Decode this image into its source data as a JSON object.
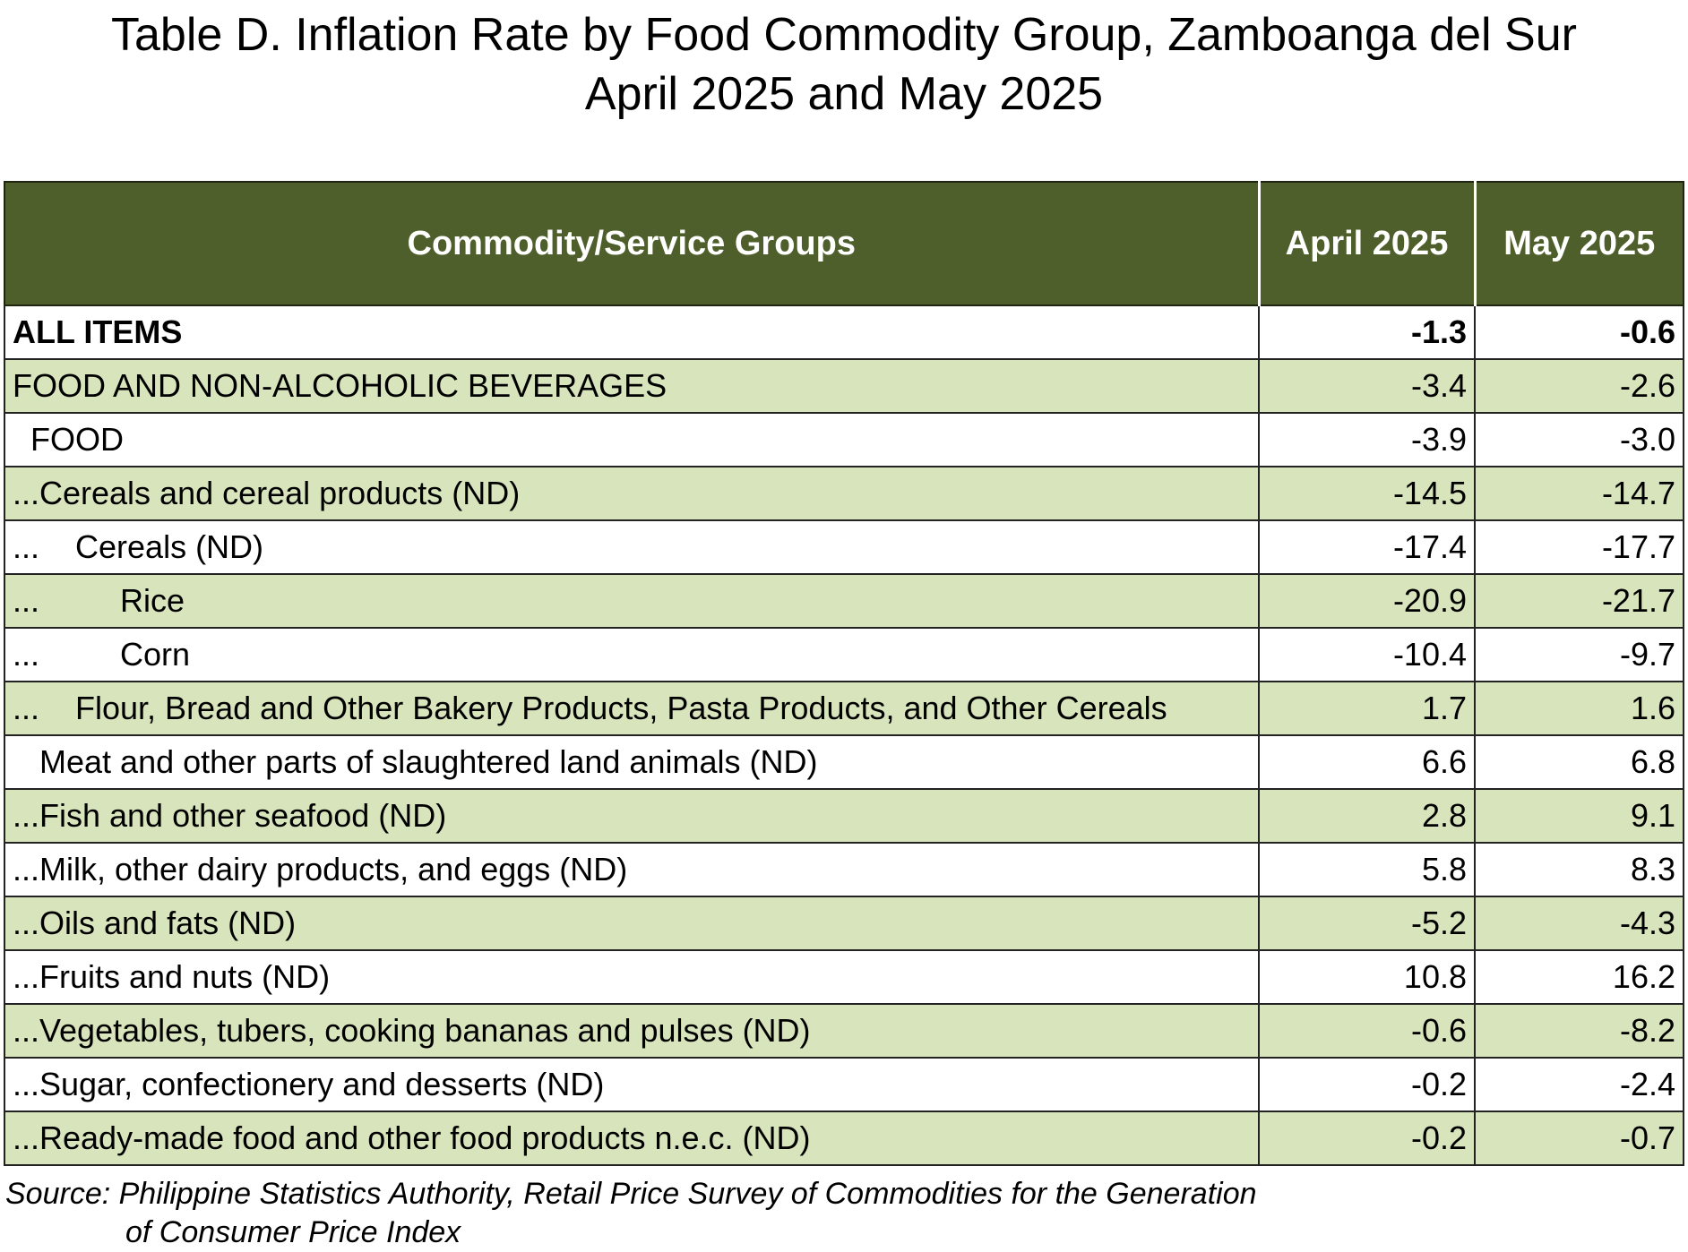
{
  "title": {
    "line1": "Table D. Inflation Rate by Food Commodity Group, Zamboanga del Sur",
    "line2": "April 2025 and May 2025"
  },
  "table": {
    "headers": [
      "Commodity/Service Groups",
      "April 2025",
      "May 2025"
    ],
    "rows": [
      {
        "label": "ALL ITEMS",
        "april": "-1.3",
        "may": "-0.6",
        "bold": true
      },
      {
        "label": "FOOD AND NON-ALCOHOLIC BEVERAGES",
        "april": "-3.4",
        "may": "-2.6"
      },
      {
        "label": "  FOOD",
        "april": "-3.9",
        "may": "-3.0"
      },
      {
        "label": "...Cereals and cereal products (ND)",
        "april": "-14.5",
        "may": "-14.7"
      },
      {
        "label": "...    Cereals (ND)",
        "april": "-17.4",
        "may": "-17.7"
      },
      {
        "label": "...         Rice",
        "april": "-20.9",
        "may": "-21.7"
      },
      {
        "label": "...         Corn",
        "april": "-10.4",
        "may": "-9.7"
      },
      {
        "label": "...    Flour, Bread and Other Bakery Products, Pasta Products, and Other Cereals",
        "april": "1.7",
        "may": "1.6"
      },
      {
        "label": "   Meat and other parts of slaughtered land animals (ND)",
        "april": "6.6",
        "may": "6.8"
      },
      {
        "label": "...Fish and other seafood (ND)",
        "april": "2.8",
        "may": "9.1"
      },
      {
        "label": "...Milk, other dairy products, and eggs (ND)",
        "april": "5.8",
        "may": "8.3"
      },
      {
        "label": "...Oils and fats (ND)",
        "april": "-5.2",
        "may": "-4.3"
      },
      {
        "label": "...Fruits and nuts (ND)",
        "april": "10.8",
        "may": "16.2"
      },
      {
        "label": "...Vegetables, tubers, cooking bananas and pulses (ND)",
        "april": "-0.6",
        "may": "-8.2"
      },
      {
        "label": "...Sugar, confectionery and desserts (ND)",
        "april": "-0.2",
        "may": "-2.4"
      },
      {
        "label": "...Ready-made food and other food products n.e.c. (ND)",
        "april": "-0.2",
        "may": "-0.7"
      }
    ]
  },
  "source": {
    "line1": "Source: Philippine Statistics Authority, Retail Price Survey of Commodities for the Generation",
    "line2": "of Consumer Price Index"
  }
}
